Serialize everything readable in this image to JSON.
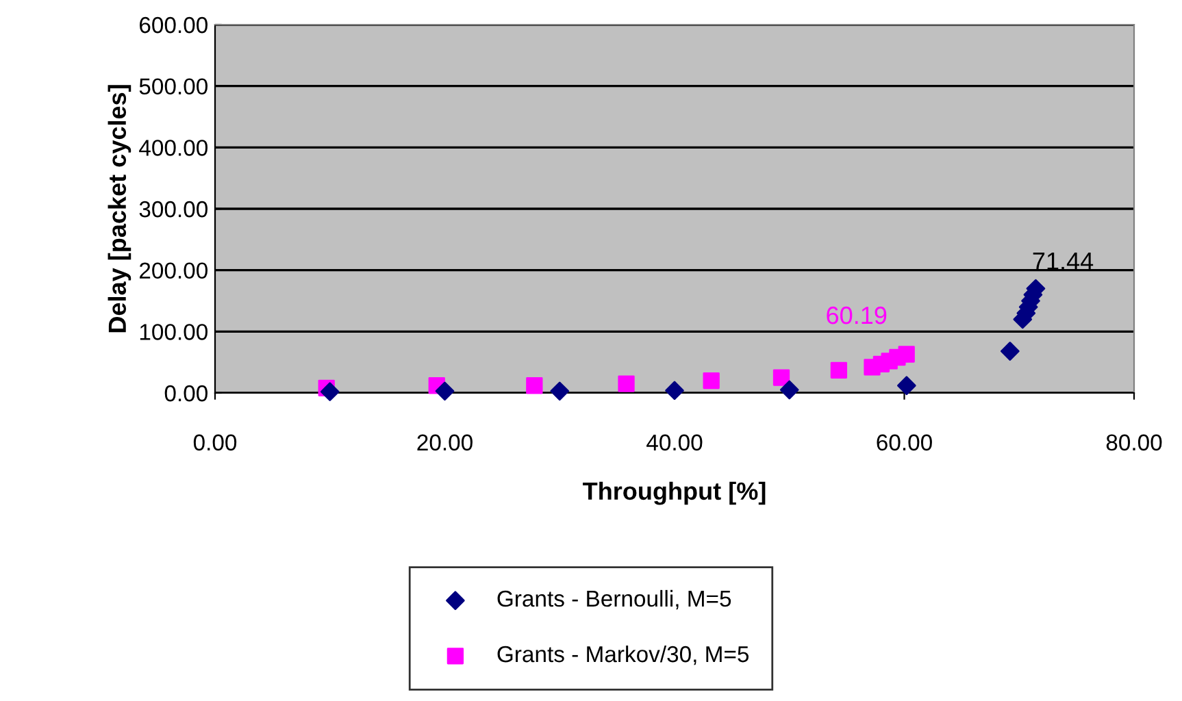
{
  "chart_data": {
    "type": "scatter",
    "xlabel": "Throughput [%]",
    "ylabel": "Delay [packet cycles]",
    "xlim": [
      0,
      80
    ],
    "xticks": [
      {
        "value": 0,
        "label": "0.00"
      },
      {
        "value": 20,
        "label": "20.00"
      },
      {
        "value": 40,
        "label": "40.00"
      },
      {
        "value": 60,
        "label": "60.00"
      },
      {
        "value": 80,
        "label": "80.00"
      }
    ],
    "ylim": [
      0,
      600
    ],
    "yticks": [
      {
        "value": 0,
        "label": "0.00"
      },
      {
        "value": 100,
        "label": "100.00"
      },
      {
        "value": 200,
        "label": "200.00"
      },
      {
        "value": 300,
        "label": "300.00"
      },
      {
        "value": 400,
        "label": "400.00"
      },
      {
        "value": 500,
        "label": "500.00"
      },
      {
        "value": 600,
        "label": "600.00"
      }
    ],
    "grid": "y",
    "legend": "bottom",
    "series": [
      {
        "name": "Grants - Bernoulli, M=5",
        "color": "#000080",
        "marker": "diamond",
        "x": [
          10,
          20,
          30,
          40,
          50,
          60.2,
          69.2,
          70.3,
          70.6,
          70.8,
          71.0,
          71.2,
          71.44
        ],
        "values": [
          2,
          3,
          3,
          4,
          5,
          12,
          68,
          120,
          130,
          140,
          150,
          160,
          170
        ]
      },
      {
        "name": "Grants - Markov/30, M=5",
        "color": "#ff00ff",
        "marker": "square",
        "x": [
          9.7,
          19.3,
          27.8,
          35.8,
          43.2,
          49.3,
          54.3,
          57.2,
          58.0,
          58.7,
          59.4,
          60.19
        ],
        "values": [
          8,
          12,
          12,
          15,
          20,
          25,
          37,
          42,
          47,
          52,
          58,
          63
        ]
      }
    ],
    "annotations": [
      {
        "text": "71.44",
        "x": 71.44,
        "y": 170
      },
      {
        "text": "60.19",
        "x": 60.19,
        "y": 63
      }
    ]
  }
}
